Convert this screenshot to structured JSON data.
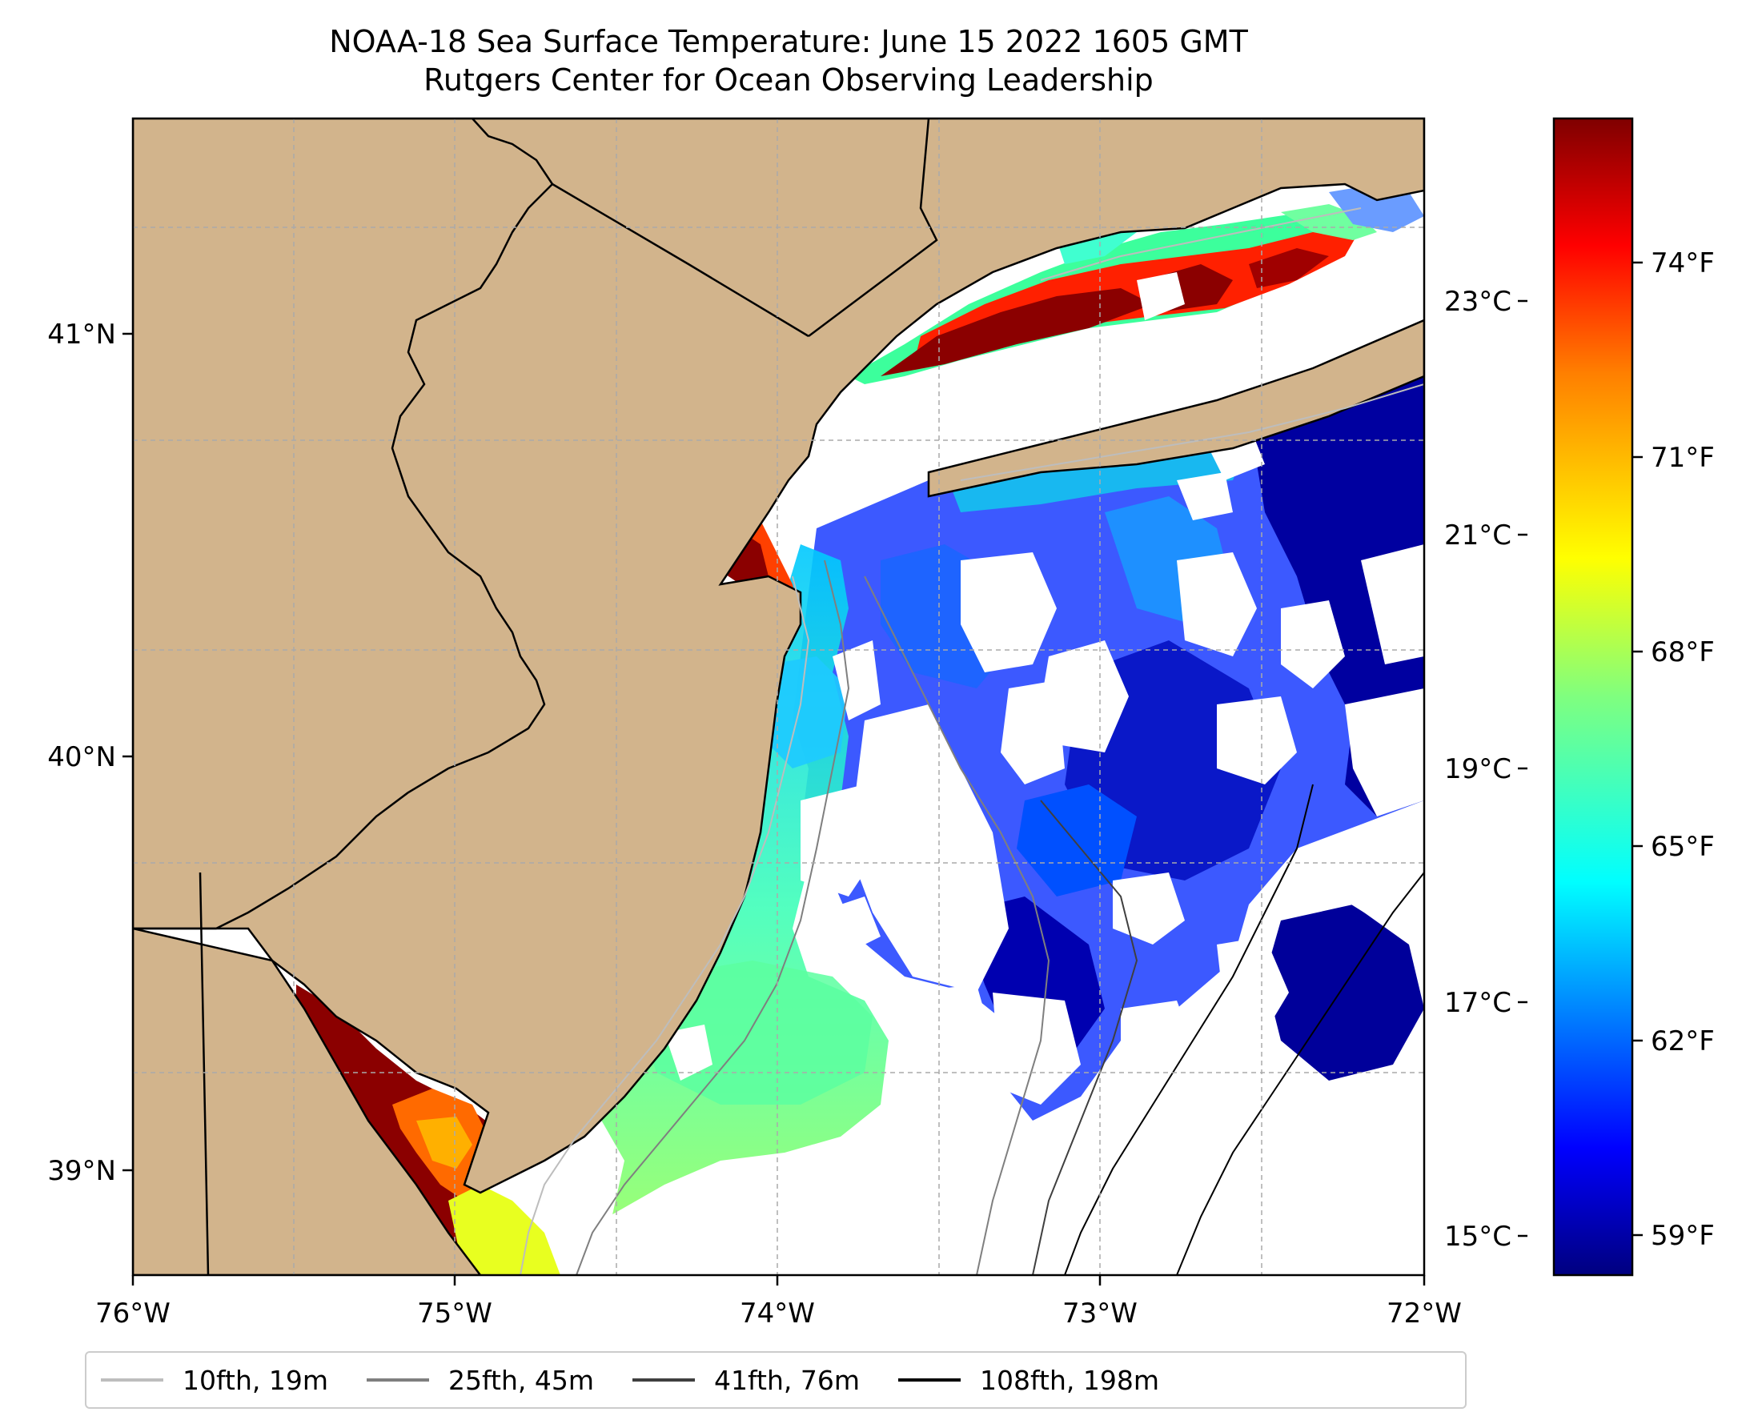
{
  "title": {
    "line1": "NOAA-18 Sea Surface Temperature: June 15 2022 1605 GMT",
    "line2": "Rutgers Center for Ocean Observing Leadership"
  },
  "axes": {
    "lon_labels": [
      "76°W",
      "75°W",
      "74°W",
      "73°W",
      "72°W"
    ],
    "lat_labels": [
      "41°N",
      "40°N",
      "39°N"
    ]
  },
  "colorbar": {
    "celsius_labels": [
      "23°C",
      "21°C",
      "19°C",
      "17°C",
      "15°C"
    ],
    "fahrenheit_labels": [
      "74°F",
      "71°F",
      "68°F",
      "65°F",
      "62°F",
      "59°F"
    ],
    "colormap": [
      "#00007f",
      "#0000ff",
      "#007fff",
      "#00ffff",
      "#7fff7f",
      "#ffff00",
      "#ff7f00",
      "#ff0000",
      "#7f0000"
    ]
  },
  "colors": {
    "land": "#d2b48c",
    "ocean_nodata": "#ffffff",
    "warm": "#8b0000",
    "cold": "#00008b"
  },
  "legend": [
    {
      "label": "10fth, 19m",
      "color": "#bdbdbd"
    },
    {
      "label": "25fth, 45m",
      "color": "#7f7f7f"
    },
    {
      "label": "41fth, 76m",
      "color": "#3f3f3f"
    },
    {
      "label": "108fth, 198m",
      "color": "#000000"
    }
  ]
}
